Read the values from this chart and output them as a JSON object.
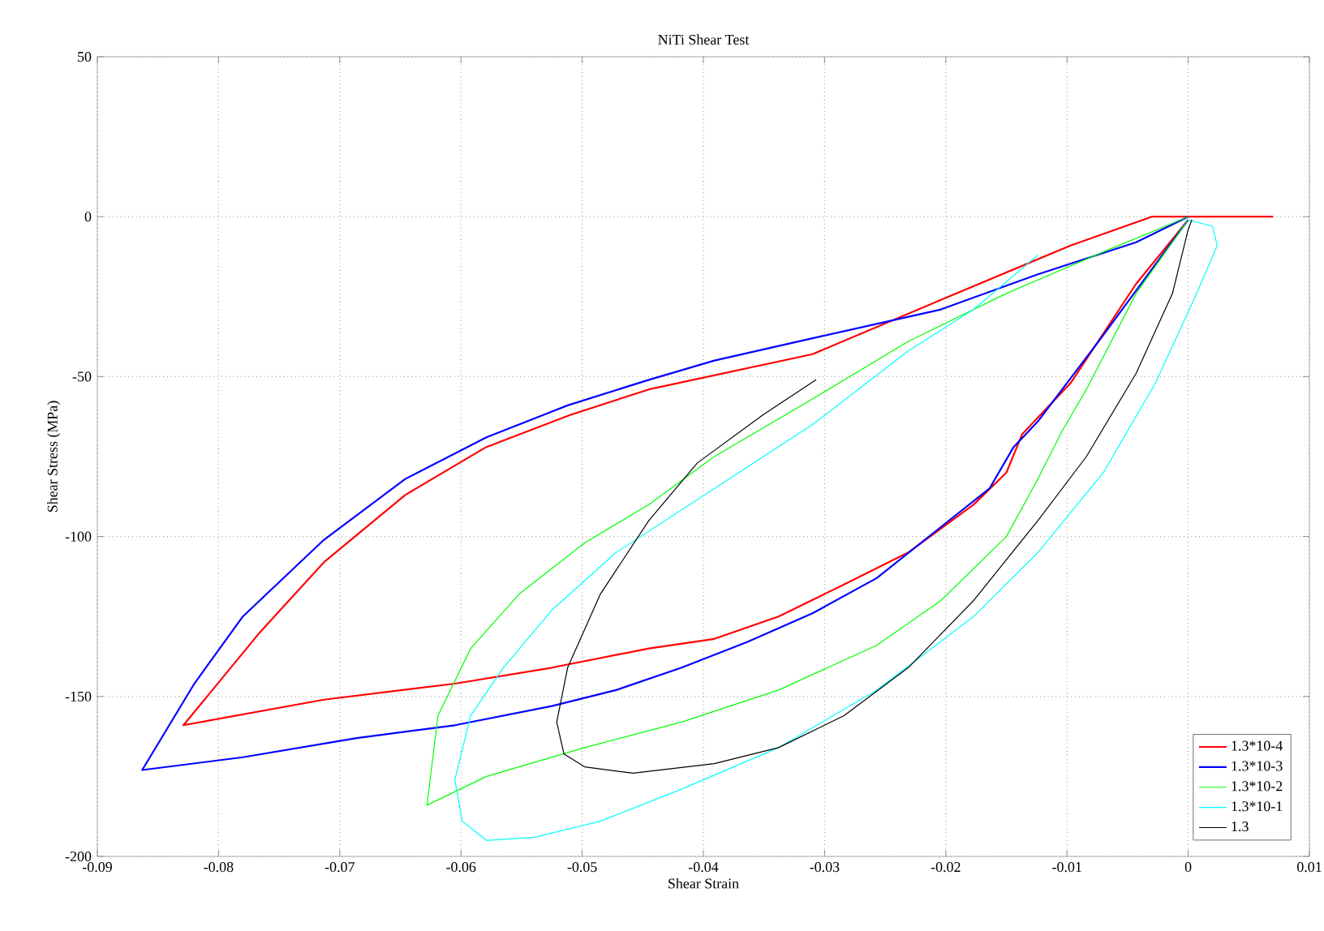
{
  "chart_data": {
    "type": "line",
    "title": "NiTi Shear Test",
    "xlabel": "Shear Strain",
    "ylabel": "Shear Stress (MPa)",
    "xlim": [
      -0.09,
      0.01
    ],
    "ylim": [
      -200,
      50
    ],
    "xticks": [
      -0.09,
      -0.08,
      -0.07,
      -0.06,
      -0.05,
      -0.04,
      -0.03,
      -0.02,
      -0.01,
      0,
      0.01
    ],
    "yticks": [
      -200,
      -150,
      -100,
      -50,
      0,
      50
    ],
    "grid": true,
    "legend": "bottom right",
    "line_style": "solid",
    "marker": "none",
    "series": [
      {
        "name": "1.3*10-4",
        "color": "#ff0000",
        "x": [
          0.007,
          -0.003,
          -0.0097,
          -0.0204,
          -0.031,
          -0.0445,
          -0.051,
          -0.0579,
          -0.0646,
          -0.0713,
          -0.0766,
          -0.0829,
          -0.0713,
          -0.0605,
          -0.0525,
          -0.0445,
          -0.0391,
          -0.0338,
          -0.0284,
          -0.0231,
          -0.0177,
          -0.015,
          -0.0137,
          -0.0097,
          -0.0043,
          0
        ],
        "values": [
          0,
          0,
          -9,
          -26,
          -43,
          -54,
          -62,
          -72,
          -87,
          -108,
          -130,
          -159,
          -151,
          -146,
          -141,
          -135,
          -132,
          -125,
          -115,
          -105,
          -90,
          -80,
          -68,
          -52,
          -21,
          -1
        ]
      },
      {
        "name": "1.3*10-3",
        "color": "#0000ff",
        "x": [
          0,
          -0.0043,
          -0.0124,
          -0.0204,
          -0.031,
          -0.0391,
          -0.0445,
          -0.0512,
          -0.0579,
          -0.0646,
          -0.0713,
          -0.078,
          -0.082,
          -0.0863,
          -0.078,
          -0.0686,
          -0.0605,
          -0.0525,
          -0.0472,
          -0.0418,
          -0.0364,
          -0.031,
          -0.0257,
          -0.0204,
          -0.0164,
          -0.0144,
          -0.0124,
          -0.007,
          0
        ],
        "values": [
          0,
          -8,
          -18,
          -29,
          -38,
          -45,
          -51,
          -59,
          -69,
          -82,
          -101,
          -125,
          -146,
          -173,
          -169,
          -163,
          -159,
          -153,
          -148,
          -141,
          -133,
          -124,
          -113,
          -97,
          -85,
          -72,
          -64,
          -37,
          -1
        ]
      },
      {
        "name": "1.3*10-2",
        "color": "#00ff00",
        "x": [
          0,
          -0.007,
          -0.015,
          -0.0231,
          -0.031,
          -0.0391,
          -0.0445,
          -0.0498,
          -0.0552,
          -0.0592,
          -0.0619,
          -0.0628,
          -0.0579,
          -0.0498,
          -0.0418,
          -0.0338,
          -0.0257,
          -0.0204,
          -0.015,
          -0.0124,
          -0.0104,
          -0.0084,
          -0.0043,
          0
        ],
        "values": [
          0,
          -11,
          -24,
          -39,
          -57,
          -75,
          -90,
          -102,
          -118,
          -135,
          -156,
          -184,
          -175,
          -166,
          -158,
          -148,
          -134,
          -120,
          -100,
          -82,
          -67,
          -54,
          -24,
          -1
        ]
      },
      {
        "name": "1.3*10-1",
        "color": "#00ffff",
        "x": [
          -0.0124,
          -0.0177,
          -0.0231,
          -0.031,
          -0.0391,
          -0.0472,
          -0.0525,
          -0.0565,
          -0.0592,
          -0.0605,
          -0.0599,
          -0.0579,
          -0.0539,
          -0.0485,
          -0.0418,
          -0.0338,
          -0.0257,
          -0.0177,
          -0.0124,
          -0.007,
          -0.0027,
          0.0007,
          0.0024,
          0.002,
          0
        ],
        "values": [
          -12,
          -29,
          -42,
          -65,
          -85,
          -105,
          -123,
          -141,
          -156,
          -176,
          -189,
          -195,
          -194,
          -189,
          -179,
          -166,
          -148,
          -125,
          -105,
          -80,
          -52,
          -24,
          -9,
          -3,
          -1
        ]
      },
      {
        "name": "1.3",
        "color": "#000000",
        "x": [
          -0.0307,
          -0.0351,
          -0.0405,
          -0.0445,
          -0.0485,
          -0.0512,
          -0.0521,
          -0.0515,
          -0.0498,
          -0.0458,
          -0.0391,
          -0.0338,
          -0.0284,
          -0.0231,
          -0.0177,
          -0.0124,
          -0.0084,
          -0.0043,
          -0.0013,
          0,
          0.0003
        ],
        "values": [
          -51,
          -62,
          -77,
          -95,
          -118,
          -141,
          -158,
          -168,
          -172,
          -174,
          -171,
          -166,
          -156,
          -141,
          -120,
          -95,
          -75,
          -49,
          -24,
          -4,
          -1
        ]
      }
    ]
  }
}
